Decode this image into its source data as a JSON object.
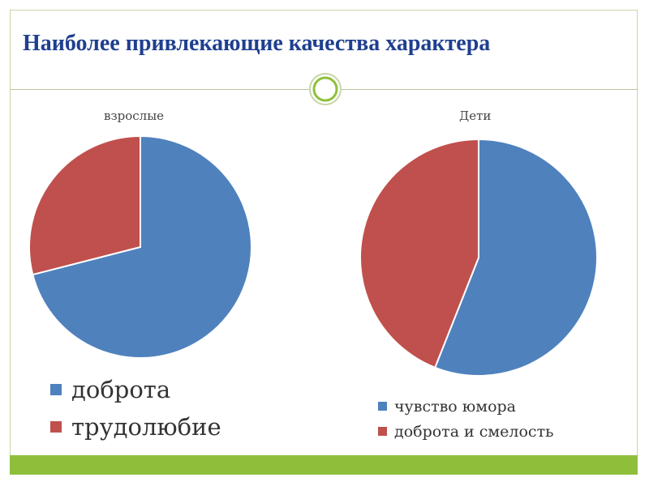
{
  "slide": {
    "title": "Наиболее привлекающие качества характера"
  },
  "colors": {
    "blue": "#4f81bd",
    "red": "#c0504d",
    "title": "#1f3f8f",
    "accent_green": "#8fbf3a"
  },
  "chart_data": [
    {
      "type": "pie",
      "title": "взрослые",
      "labels": [
        "доброта",
        "трудолюбие"
      ],
      "values": [
        71,
        29
      ],
      "colors": [
        "#4f81bd",
        "#c0504d"
      ],
      "legend": "bottom"
    },
    {
      "type": "pie",
      "title": "Дети",
      "labels": [
        "чувство юмора",
        "доброта и смелость"
      ],
      "values": [
        56,
        44
      ],
      "colors": [
        "#4f81bd",
        "#c0504d"
      ],
      "legend": "bottom"
    }
  ]
}
